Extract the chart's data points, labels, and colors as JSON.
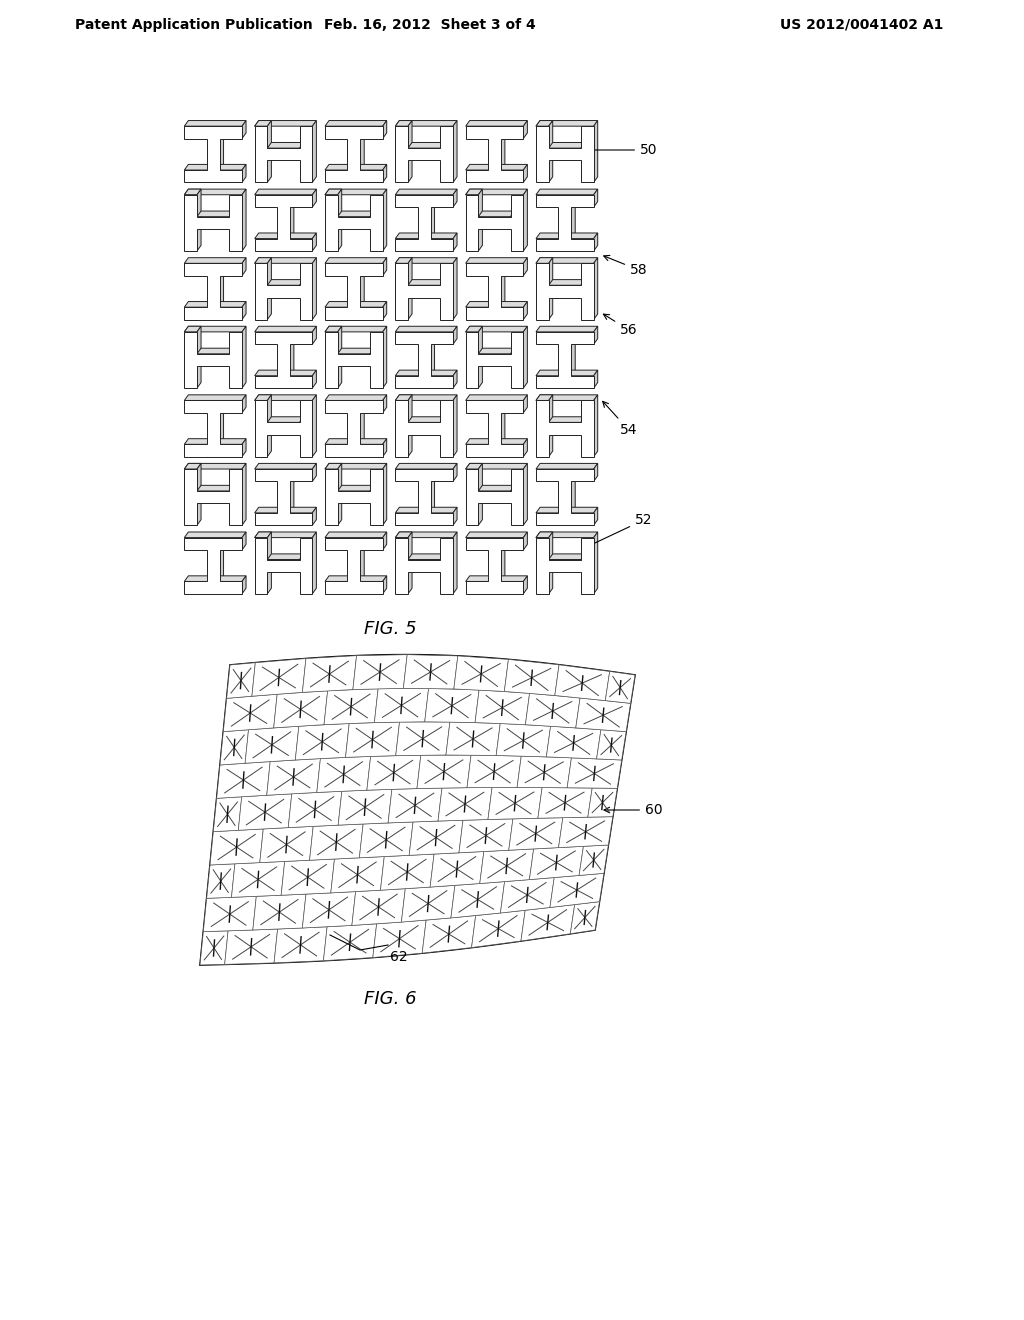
{
  "header_left": "Patent Application Publication",
  "header_mid": "Feb. 16, 2012  Sheet 3 of 4",
  "header_right": "US 2012/0041402 A1",
  "fig5_label": "FIG. 5",
  "fig6_label": "FIG. 6",
  "ref_50": "50",
  "ref_52": "52",
  "ref_54": "54",
  "ref_56": "56",
  "ref_58": "58",
  "ref_60": "60",
  "ref_62": "62",
  "bg_color": "#ffffff",
  "line_color": "#000000",
  "gray_color": "#aaaaaa",
  "header_fontsize": 10,
  "fig_label_fontsize": 13,
  "ref_fontsize": 10
}
